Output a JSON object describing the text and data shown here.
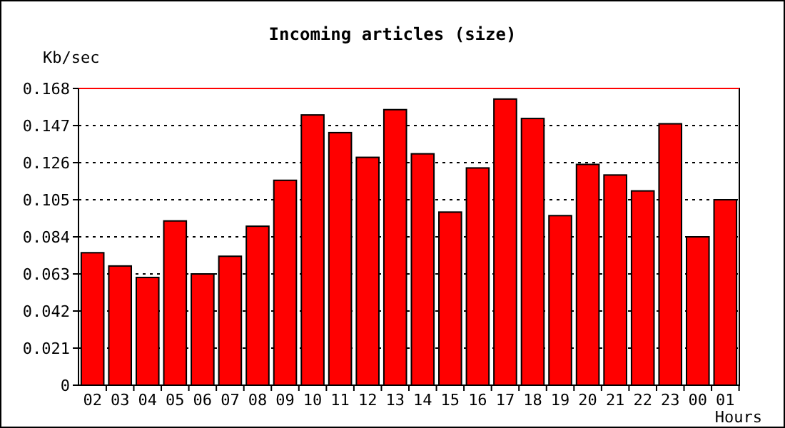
{
  "chart_data": {
    "type": "bar",
    "title": "Incoming articles (size)",
    "ylabel": "Kb/sec",
    "xlabel": "Hours",
    "categories": [
      "02",
      "03",
      "04",
      "05",
      "06",
      "07",
      "08",
      "09",
      "10",
      "11",
      "12",
      "13",
      "14",
      "15",
      "16",
      "17",
      "18",
      "19",
      "20",
      "21",
      "22",
      "23",
      "00",
      "01"
    ],
    "values": [
      0.075,
      0.0675,
      0.061,
      0.093,
      0.063,
      0.073,
      0.09,
      0.116,
      0.153,
      0.143,
      0.129,
      0.156,
      0.131,
      0.098,
      0.123,
      0.162,
      0.151,
      0.096,
      0.125,
      0.119,
      0.11,
      0.148,
      0.084,
      0.105
    ],
    "color": "#ff0000",
    "ylim": [
      0,
      0.168
    ],
    "yticks": [
      0,
      0.021,
      0.042,
      0.063,
      0.084,
      0.105,
      0.126,
      0.147,
      0.168
    ],
    "grid": "y",
    "ref_lines": [
      {
        "axis": "y",
        "value": 0.168,
        "color": "#ff0000"
      }
    ]
  }
}
